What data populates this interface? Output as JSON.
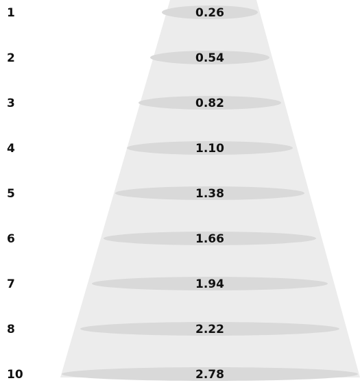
{
  "beam_rows": [
    {
      "label": "1",
      "value": "0.26"
    },
    {
      "label": "2",
      "value": "0.54"
    },
    {
      "label": "3",
      "value": "0.82"
    },
    {
      "label": "4",
      "value": "1.10"
    },
    {
      "label": "5",
      "value": "1.38"
    },
    {
      "label": "6",
      "value": "1.66"
    },
    {
      "label": "7",
      "value": "1.94"
    },
    {
      "label": "8",
      "value": "2.22"
    },
    {
      "label": "10",
      "value": "2.78"
    }
  ],
  "colors": {
    "cone_fill": "#ececec",
    "ellipse_fill": "#d9d9d9",
    "text": "#111111",
    "background": "#ffffff"
  }
}
